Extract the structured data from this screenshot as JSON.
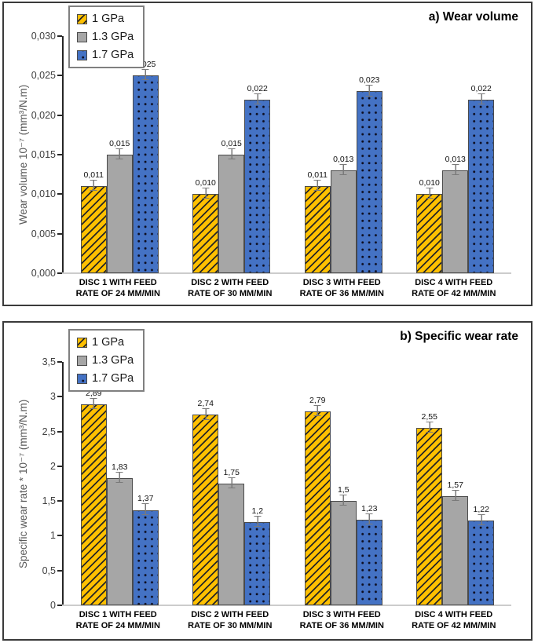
{
  "figure": {
    "panel_a_title": "a) Wear volume",
    "panel_b_title": "b) Specific wear rate",
    "series_colors": {
      "gpa1": "#FFC000",
      "gpa13": "#A6A6A6",
      "gpa17": "#4472C4"
    }
  },
  "chart_data": [
    {
      "type": "bar",
      "title": "a) Wear volume",
      "ylabel": "Wear volume  10⁻⁷ (mm³/N.m)",
      "xlabel": "",
      "ylim": [
        0,
        0.03
      ],
      "grid": false,
      "legend_position": "top-left",
      "legend": [
        "1 GPa",
        "1.3 GPa",
        "1.7 GPa"
      ],
      "ytick_values": [
        0.03,
        0.025,
        0.02,
        0.015,
        0.01,
        0.005,
        0.0
      ],
      "ytick_labels": [
        "0,030",
        "0,025",
        "0,020",
        "0,015",
        "0,010",
        "0,005",
        "0,000"
      ],
      "categories": [
        [
          "DISC 1 WITH FEED",
          "RATE OF 24 MM/MIN"
        ],
        [
          "DISC 2 WITH FEED",
          "RATE OF 30 MM/MIN"
        ],
        [
          "DISC 3 WITH FEED",
          "RATE OF 36 MM/MIN"
        ],
        [
          "DISC 4 WITH FEED",
          "RATE OF 42 MM/MIN"
        ]
      ],
      "error_abs": 0.0006,
      "series": [
        {
          "name": "1 GPa",
          "color": "#FFC000",
          "pattern": "diagonal-hatch",
          "values": [
            0.011,
            0.01,
            0.011,
            0.01
          ],
          "labels": [
            "0,011",
            "0,010",
            "0,011",
            "0,010"
          ]
        },
        {
          "name": "1.3 GPa",
          "color": "#A6A6A6",
          "pattern": "solid",
          "values": [
            0.015,
            0.015,
            0.013,
            0.013
          ],
          "labels": [
            "0,015",
            "0,015",
            "0,013",
            "0,013"
          ]
        },
        {
          "name": "1.7 GPa",
          "color": "#4472C4",
          "pattern": "dots",
          "values": [
            0.025,
            0.022,
            0.023,
            0.022
          ],
          "labels": [
            "0,025",
            "0,022",
            "0,023",
            "0,022"
          ]
        }
      ]
    },
    {
      "type": "bar",
      "title": "b) Specific wear rate",
      "ylabel": "Specific wear rate * 10⁻⁷ (mm³/N.m)",
      "xlabel": "",
      "ylim": [
        0,
        3.5
      ],
      "grid": false,
      "legend_position": "top-left",
      "legend": [
        "1 GPa",
        "1.3 GPa",
        "1.7 GPa"
      ],
      "ytick_values": [
        3.5,
        3,
        2.5,
        2,
        1.5,
        1,
        0.5,
        0
      ],
      "ytick_labels": [
        "3,5",
        "3",
        "2,5",
        "2",
        "1,5",
        "1",
        "0,5",
        "0"
      ],
      "categories": [
        [
          "DISC 1 WITH FEED",
          "RATE OF 24 MM/MIN"
        ],
        [
          "DISC 2 WITH FEED",
          "RATE OF 30 MM/MIN"
        ],
        [
          "DISC 3 WITH FEED",
          "RATE OF 36 MM/MIN"
        ],
        [
          "DISC 4 WITH FEED",
          "RATE OF 42 MM/MIN"
        ]
      ],
      "error_abs": 0.07,
      "series": [
        {
          "name": "1 GPa",
          "color": "#FFC000",
          "pattern": "diagonal-hatch",
          "values": [
            2.89,
            2.74,
            2.79,
            2.55
          ],
          "labels": [
            "2,89",
            "2,74",
            "2,79",
            "2,55"
          ]
        },
        {
          "name": "1.3 GPa",
          "color": "#A6A6A6",
          "pattern": "solid",
          "values": [
            1.83,
            1.75,
            1.5,
            1.57
          ],
          "labels": [
            "1,83",
            "1,75",
            "1,5",
            "1,57"
          ]
        },
        {
          "name": "1.7 GPa",
          "color": "#4472C4",
          "pattern": "dots",
          "values": [
            1.37,
            1.2,
            1.23,
            1.22
          ],
          "labels": [
            "1,37",
            "1,2",
            "1,23",
            "1,22"
          ]
        }
      ]
    }
  ]
}
